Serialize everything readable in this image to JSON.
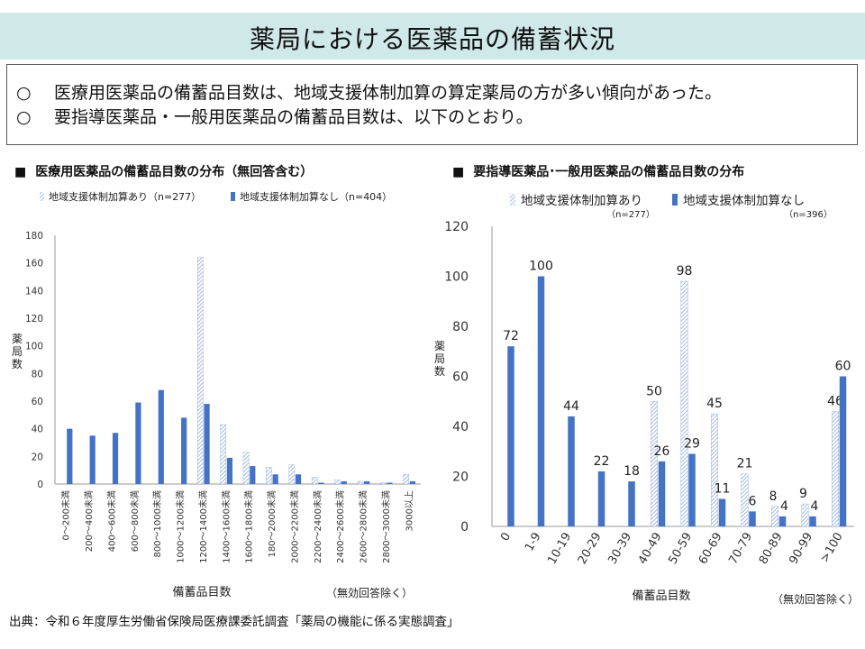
{
  "page_title": "薬局における医薬品の備蓄状況",
  "summary": {
    "bullets": [
      {
        "mark": "○",
        "text": "医療用医薬品の備蓄品目数は、地域支援体制加算の算定薬局の方が多い傾向があった。"
      },
      {
        "mark": "○",
        "text": "要指導医薬品・一般用医薬品の備蓄品目数は、以下のとおり。"
      }
    ]
  },
  "source_note": "出典：令和６年度厚生労働省保険局医療課委託調査「薬局の機能に係る実態調査」",
  "colors": {
    "solid": "#4472c4",
    "hatch": "#8faadc",
    "axis": "#999999"
  },
  "chart_data": [
    {
      "type": "bar",
      "title": "医療用医薬品の備蓄品目数の分布（無回答含む）",
      "title_mark": "■",
      "ylabel": "薬局数",
      "xlabel": "備蓄品目数",
      "note": "（無効回答除く）",
      "ylim": [
        0,
        180
      ],
      "yticks": [
        0,
        20,
        40,
        60,
        80,
        100,
        120,
        140,
        160,
        180
      ],
      "categories": [
        "0～200未満",
        "200～400未満",
        "400～600未満",
        "600～800未満",
        "800～1000未満",
        "1000～1200未満",
        "1200～1400未満",
        "1400～1600未満",
        "1600～1800未満",
        "180～2000未満",
        "2000～2200未満",
        "2200～2400未満",
        "2400～2600未満",
        "2600～2800未満",
        "2800～3000未満",
        "3000以上"
      ],
      "series": [
        {
          "name": "地域支援体制加算あり（n=277）",
          "style": "hatch",
          "values": [
            0,
            0,
            0,
            0,
            0,
            0,
            164,
            43,
            23,
            12,
            14,
            5,
            3,
            2,
            1,
            7
          ]
        },
        {
          "name": "地域支援体制加算なし（n=404）",
          "style": "solid",
          "values": [
            40,
            35,
            37,
            59,
            68,
            48,
            58,
            19,
            13,
            7,
            7,
            1,
            2,
            2,
            1,
            2
          ]
        }
      ],
      "legend_position": "top",
      "grid": false
    },
    {
      "type": "bar",
      "title": "要指導医薬品･一般用医薬品の備蓄品目数の分布",
      "title_mark": "■",
      "ylabel": "薬局数",
      "xlabel": "備蓄品目数",
      "note": "（無効回答除く）",
      "ylim": [
        0,
        120
      ],
      "yticks": [
        0,
        20,
        40,
        60,
        80,
        100,
        120
      ],
      "categories": [
        "0",
        "1-9",
        "10-19",
        "20-29",
        "30-39",
        "40-49",
        "50-59",
        "60-69",
        "70-79",
        "80-89",
        "90-99",
        ">100"
      ],
      "series": [
        {
          "name": "地域支援体制加算あり",
          "n_label": "（n=277）",
          "style": "hatch",
          "values": [
            null,
            null,
            null,
            null,
            null,
            50,
            98,
            45,
            21,
            8,
            9,
            46
          ]
        },
        {
          "name": "地域支援体制加算なし",
          "n_label": "（n=396）",
          "style": "solid",
          "values": [
            72,
            100,
            44,
            22,
            18,
            26,
            29,
            11,
            6,
            4,
            4,
            60
          ]
        }
      ],
      "legend_position": "top",
      "grid": false
    }
  ]
}
